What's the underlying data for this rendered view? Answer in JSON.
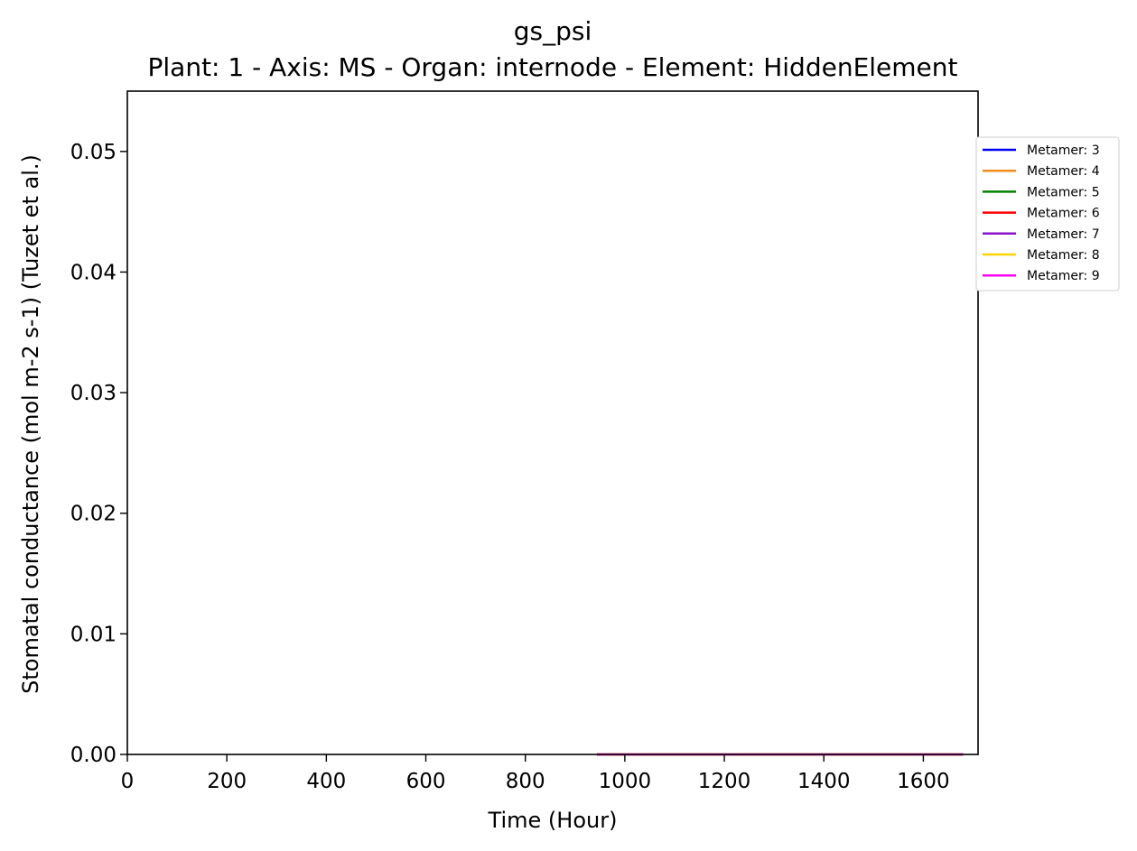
{
  "chart_data": {
    "type": "line",
    "title": "gs_psi",
    "subtitle": "Plant: 1 - Axis: MS - Organ: internode - Element: HiddenElement",
    "xlabel": "Time (Hour)",
    "ylabel": "Stomatal conductance (mol m-2 s-1) (Tuzet et al.)",
    "xlim": [
      0,
      1710
    ],
    "ylim": [
      0,
      0.055
    ],
    "xticks": [
      0,
      200,
      400,
      600,
      800,
      1000,
      1200,
      1400,
      1600
    ],
    "yticks": [
      0.0,
      0.01,
      0.02,
      0.03,
      0.04,
      0.05
    ],
    "xtick_labels": [
      "0",
      "200",
      "400",
      "600",
      "800",
      "1000",
      "1200",
      "1400",
      "1600"
    ],
    "ytick_labels": [
      "0.00",
      "0.01",
      "0.02",
      "0.03",
      "0.04",
      "0.05"
    ],
    "grid": false,
    "legend_position": "outside-right-top",
    "series": [
      {
        "name": "Metamer: 3",
        "color": "#0000ff",
        "x": [
          944,
          1680
        ],
        "y": [
          0,
          0
        ]
      },
      {
        "name": "Metamer: 4",
        "color": "#f28c1c",
        "x": [
          944,
          1680
        ],
        "y": [
          0,
          0
        ]
      },
      {
        "name": "Metamer: 5",
        "color": "#008000",
        "x": [
          944,
          1680
        ],
        "y": [
          0,
          0
        ]
      },
      {
        "name": "Metamer: 6",
        "color": "#ff0000",
        "x": [
          944,
          1680
        ],
        "y": [
          0,
          0
        ]
      },
      {
        "name": "Metamer: 7",
        "color": "#8a12c7",
        "x": [
          944,
          1680
        ],
        "y": [
          0,
          0
        ]
      },
      {
        "name": "Metamer: 8",
        "color": "#ffd300",
        "x": [
          944,
          1680
        ],
        "y": [
          0,
          0
        ]
      },
      {
        "name": "Metamer: 9",
        "color": "#ff00ff",
        "x": [
          944,
          1680
        ],
        "y": [
          0,
          0
        ]
      }
    ]
  }
}
